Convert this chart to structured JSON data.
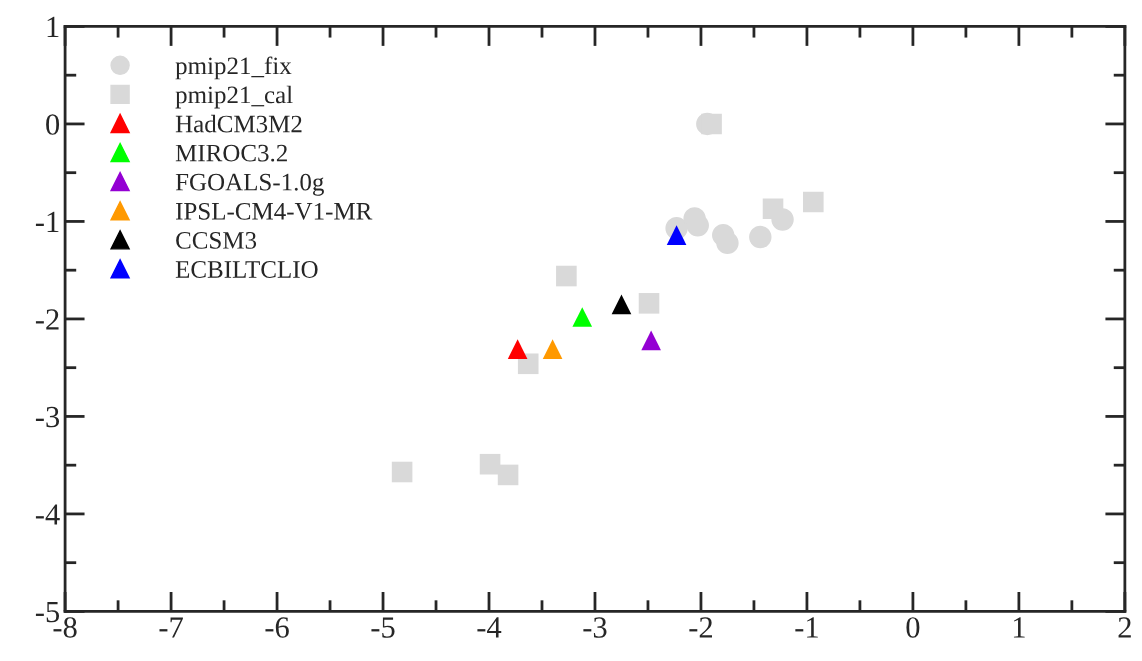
{
  "chart_data": {
    "type": "scatter",
    "xlim": [
      -8,
      2
    ],
    "xticks": [
      -8,
      -7,
      -6,
      -5,
      -4,
      -3,
      -2,
      -1,
      0,
      1,
      2
    ],
    "ylim": [
      -5,
      1
    ],
    "yticks": [
      -5,
      -4,
      -3,
      -2,
      -1,
      0,
      1
    ],
    "grid": false,
    "legend": "top left",
    "series": [
      {
        "name": "pmip21_fix",
        "color": "#d9d9d9",
        "marker": "circle",
        "x": [
          -1.94,
          -2.23,
          -2.06,
          -2.03,
          -1.79,
          -1.75,
          -1.44,
          -1.23
        ],
        "values": [
          0.0,
          -1.07,
          -0.97,
          -1.04,
          -1.14,
          -1.22,
          -1.16,
          -0.98
        ]
      },
      {
        "name": "pmip21_cal",
        "color": "#d9d9d9",
        "marker": "square",
        "x": [
          -1.9,
          -1.32,
          -0.94,
          -3.27,
          -2.49,
          -3.63,
          -4.82,
          -3.99,
          -3.82
        ],
        "values": [
          0.0,
          -0.87,
          -0.8,
          -1.56,
          -1.84,
          -2.46,
          -3.57,
          -3.49,
          -3.6
        ]
      },
      {
        "name": "HadCM3M2",
        "color": "#ff0000",
        "marker": "triangle",
        "x": [
          -3.73
        ],
        "values": [
          -2.31
        ]
      },
      {
        "name": "MIROC3.2",
        "color": "#00ff00",
        "marker": "triangle",
        "x": [
          -3.12
        ],
        "values": [
          -1.98
        ]
      },
      {
        "name": "FGOALS-1.0g",
        "color": "#9400d3",
        "marker": "triangle",
        "x": [
          -2.47
        ],
        "values": [
          -2.22
        ]
      },
      {
        "name": "IPSL-CM4-V1-MR",
        "color": "#ff9900",
        "marker": "triangle",
        "x": [
          -3.4
        ],
        "values": [
          -2.31
        ]
      },
      {
        "name": "CCSM3",
        "color": "#000000",
        "marker": "triangle",
        "x": [
          -2.75
        ],
        "values": [
          -1.85
        ]
      },
      {
        "name": "ECBILTCLIO",
        "color": "#0000ff",
        "marker": "triangle",
        "x": [
          -2.23
        ],
        "values": [
          -1.14
        ]
      }
    ]
  }
}
